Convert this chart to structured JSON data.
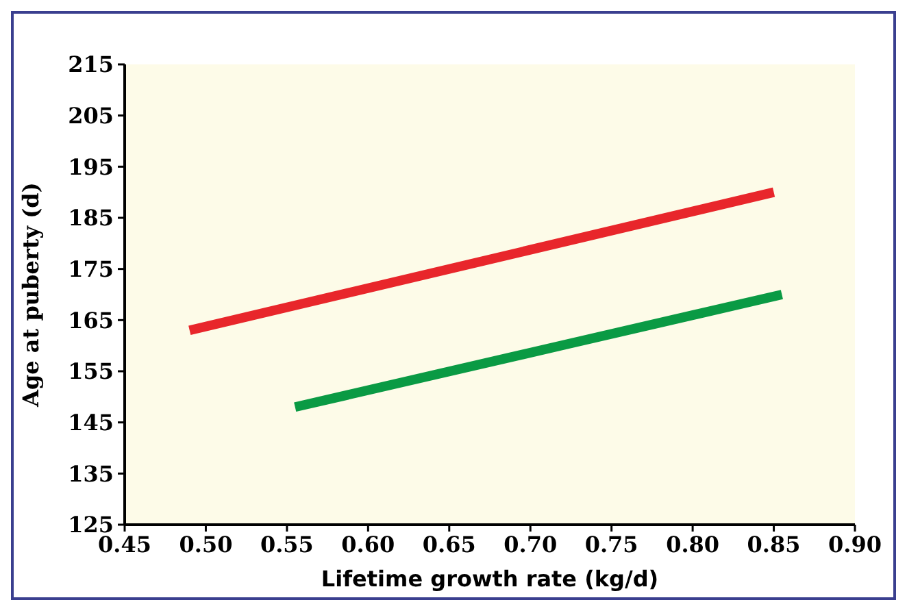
{
  "chart_data": {
    "type": "line",
    "xlabel": "Lifetime growth rate (kg/d)",
    "ylabel": "Age at puberty (d)",
    "xlim": [
      0.45,
      0.9
    ],
    "xticks": [
      {
        "value": 0.45,
        "label": "0.45"
      },
      {
        "value": 0.5,
        "label": "0.50"
      },
      {
        "value": 0.55,
        "label": "0.55"
      },
      {
        "value": 0.6,
        "label": "0.60"
      },
      {
        "value": 0.65,
        "label": "0.65"
      },
      {
        "value": 0.7,
        "label": "0.70"
      },
      {
        "value": 0.75,
        "label": "0.75"
      },
      {
        "value": 0.8,
        "label": "0.80"
      },
      {
        "value": 0.85,
        "label": "0.85"
      },
      {
        "value": 0.9,
        "label": "0.90"
      }
    ],
    "ylim": [
      125,
      215
    ],
    "yticks": [
      125,
      135,
      145,
      155,
      165,
      175,
      185,
      195,
      205,
      215
    ],
    "grid": false,
    "line_style": "solid",
    "series": [
      {
        "color": "#e8262b",
        "x": [
          0.49,
          0.85
        ],
        "values": [
          163,
          190
        ]
      },
      {
        "color": "#0a9a44",
        "x": [
          0.555,
          0.855
        ],
        "values": [
          148,
          170
        ]
      }
    ]
  }
}
